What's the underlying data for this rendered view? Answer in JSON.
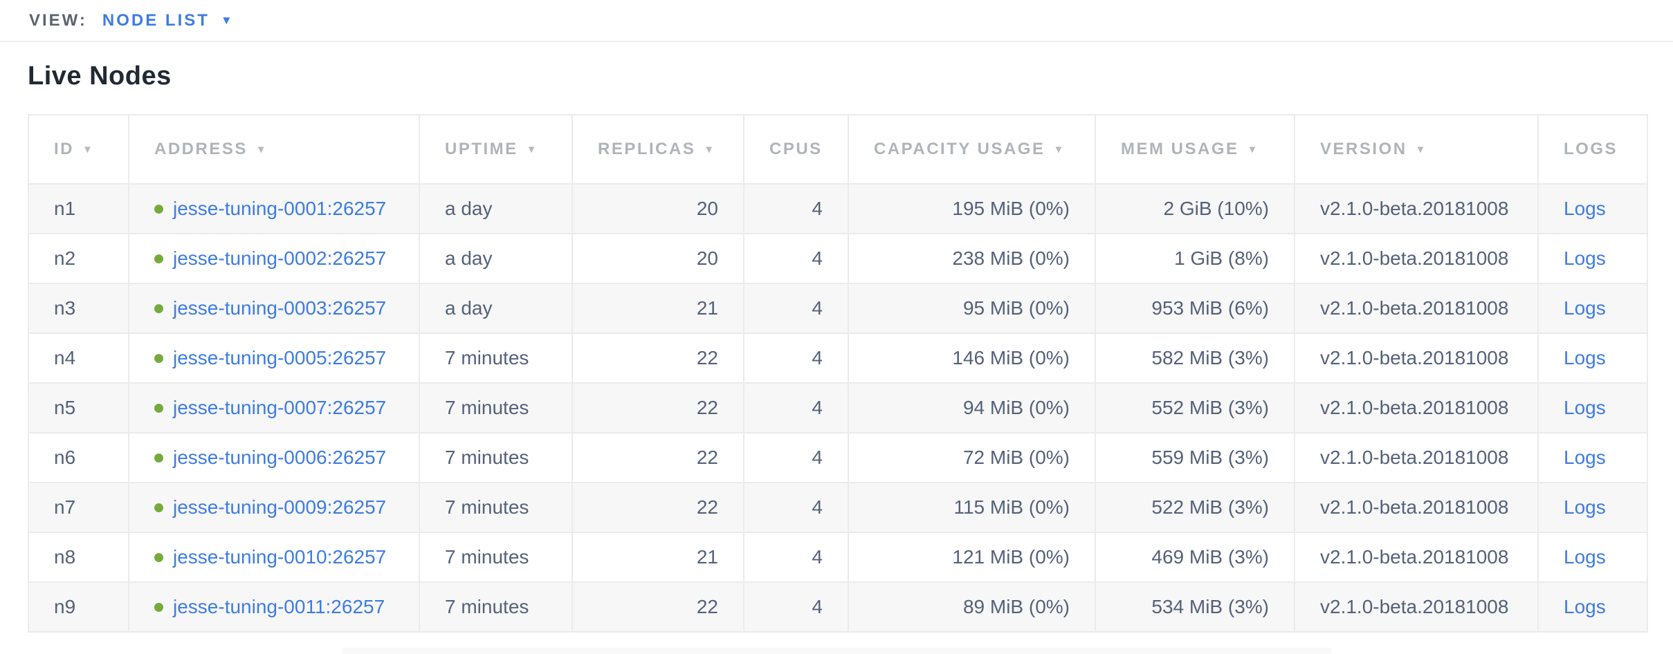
{
  "view_bar": {
    "label": "VIEW:",
    "selected": "NODE LIST",
    "caret": "▼"
  },
  "page": {
    "title": "Live Nodes"
  },
  "colors": {
    "accent_blue": "#3d7ce1",
    "health_green": "#76ab3c",
    "header_gray": "#afb4ba",
    "cell_slate": "#55617a",
    "alt_row_bg": "#f7f7f7"
  },
  "table": {
    "columns": [
      {
        "label": "ID",
        "sortable": true,
        "sort_indicator": "▼"
      },
      {
        "label": "ADDRESS",
        "sortable": true,
        "sort_indicator": "▼"
      },
      {
        "label": "UPTIME",
        "sortable": true,
        "sort_indicator": "▼"
      },
      {
        "label": "REPLICAS",
        "sortable": true,
        "sort_indicator": "▼"
      },
      {
        "label": "CPUS",
        "sortable": false,
        "sort_indicator": ""
      },
      {
        "label": "CAPACITY USAGE",
        "sortable": true,
        "sort_indicator": "▼"
      },
      {
        "label": "MEM USAGE",
        "sortable": true,
        "sort_indicator": "▼"
      },
      {
        "label": "VERSION",
        "sortable": true,
        "sort_indicator": "▼"
      },
      {
        "label": "LOGS",
        "sortable": false,
        "sort_indicator": ""
      }
    ],
    "rows": [
      {
        "id": "n1",
        "status": "healthy",
        "address": "jesse-tuning-0001:26257",
        "uptime": "a day",
        "replicas": "20",
        "cpus": "4",
        "capacity": "195 MiB (0%)",
        "mem": "2 GiB (10%)",
        "version": "v2.1.0-beta.20181008",
        "logs": "Logs"
      },
      {
        "id": "n2",
        "status": "healthy",
        "address": "jesse-tuning-0002:26257",
        "uptime": "a day",
        "replicas": "20",
        "cpus": "4",
        "capacity": "238 MiB (0%)",
        "mem": "1 GiB (8%)",
        "version": "v2.1.0-beta.20181008",
        "logs": "Logs"
      },
      {
        "id": "n3",
        "status": "healthy",
        "address": "jesse-tuning-0003:26257",
        "uptime": "a day",
        "replicas": "21",
        "cpus": "4",
        "capacity": "95 MiB (0%)",
        "mem": "953 MiB (6%)",
        "version": "v2.1.0-beta.20181008",
        "logs": "Logs"
      },
      {
        "id": "n4",
        "status": "healthy",
        "address": "jesse-tuning-0005:26257",
        "uptime": "7 minutes",
        "replicas": "22",
        "cpus": "4",
        "capacity": "146 MiB (0%)",
        "mem": "582 MiB (3%)",
        "version": "v2.1.0-beta.20181008",
        "logs": "Logs"
      },
      {
        "id": "n5",
        "status": "healthy",
        "address": "jesse-tuning-0007:26257",
        "uptime": "7 minutes",
        "replicas": "22",
        "cpus": "4",
        "capacity": "94 MiB (0%)",
        "mem": "552 MiB (3%)",
        "version": "v2.1.0-beta.20181008",
        "logs": "Logs"
      },
      {
        "id": "n6",
        "status": "healthy",
        "address": "jesse-tuning-0006:26257",
        "uptime": "7 minutes",
        "replicas": "22",
        "cpus": "4",
        "capacity": "72 MiB (0%)",
        "mem": "559 MiB (3%)",
        "version": "v2.1.0-beta.20181008",
        "logs": "Logs"
      },
      {
        "id": "n7",
        "status": "healthy",
        "address": "jesse-tuning-0009:26257",
        "uptime": "7 minutes",
        "replicas": "22",
        "cpus": "4",
        "capacity": "115 MiB (0%)",
        "mem": "522 MiB (3%)",
        "version": "v2.1.0-beta.20181008",
        "logs": "Logs"
      },
      {
        "id": "n8",
        "status": "healthy",
        "address": "jesse-tuning-0010:26257",
        "uptime": "7 minutes",
        "replicas": "21",
        "cpus": "4",
        "capacity": "121 MiB (0%)",
        "mem": "469 MiB (3%)",
        "version": "v2.1.0-beta.20181008",
        "logs": "Logs"
      },
      {
        "id": "n9",
        "status": "healthy",
        "address": "jesse-tuning-0011:26257",
        "uptime": "7 minutes",
        "replicas": "22",
        "cpus": "4",
        "capacity": "89 MiB (0%)",
        "mem": "534 MiB (3%)",
        "version": "v2.1.0-beta.20181008",
        "logs": "Logs"
      }
    ]
  }
}
